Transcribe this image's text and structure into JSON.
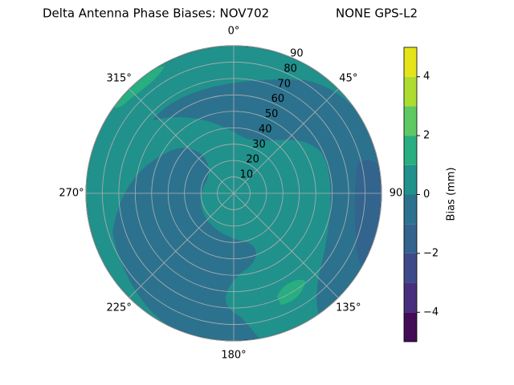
{
  "chart_data": {
    "type": "polar-contour",
    "title": "Delta Antenna Phase Biases: NOV702",
    "subtitle": "NONE GPS-L2",
    "rlim": [
      0,
      90
    ],
    "rticks": [
      10,
      20,
      30,
      40,
      50,
      60,
      70,
      80,
      90
    ],
    "theta_ticks": [
      {
        "value": 0,
        "label": "0°"
      },
      {
        "value": 45,
        "label": "45°"
      },
      {
        "value": 90,
        "label": "90"
      },
      {
        "value": 135,
        "label": "135°"
      },
      {
        "value": 180,
        "label": "180°"
      },
      {
        "value": 225,
        "label": "225°"
      },
      {
        "value": 270,
        "label": "270°"
      },
      {
        "value": 315,
        "label": "315°"
      }
    ],
    "grid": true,
    "colorbar": {
      "label": "Bias (mm)",
      "levels": [
        -5,
        -4,
        -3,
        -2,
        -1,
        0,
        1,
        2,
        3,
        4,
        5
      ],
      "colors": [
        "#440c56",
        "#472f7d",
        "#3e4a89",
        "#32648e",
        "#2c728e",
        "#21918c",
        "#28ae80",
        "#5ec962",
        "#addc30",
        "#e5e419"
      ],
      "ticks": [
        -4,
        -2,
        0,
        2,
        4
      ],
      "tick_labels": [
        "−4",
        "−2",
        "0",
        "2",
        "4"
      ]
    }
  }
}
